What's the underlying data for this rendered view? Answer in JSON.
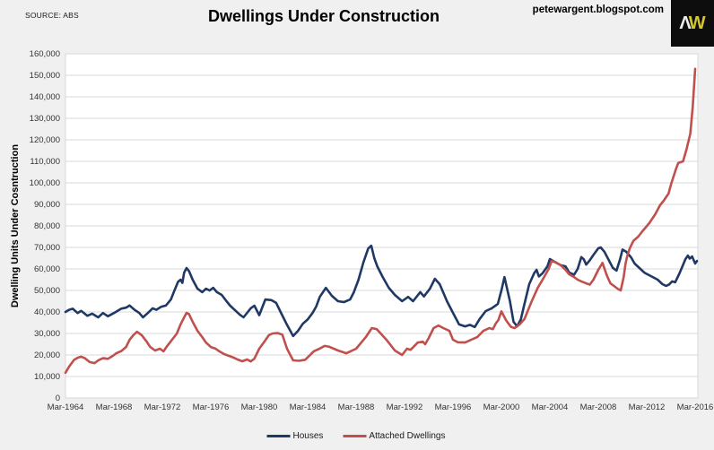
{
  "header": {
    "source_label": "SOURCE: ABS",
    "title": "Dwellings Under Construction",
    "site": "petewargent.blogspot.com",
    "logo_a": "Λ",
    "logo_w": "W"
  },
  "colors": {
    "houses": "#1F3864",
    "attached": "#C0504D",
    "gridline": "#d9d9d9",
    "plot_background": "#ffffff",
    "page_background": "#f0f0f0",
    "tick_text": "#333333"
  },
  "chart_data": {
    "type": "line",
    "title": "Dwellings Under Construction",
    "ylabel": "Dwelling Units Under Cosntruction",
    "xlabel": "",
    "ylim": [
      0,
      160000
    ],
    "ytick_step": 10000,
    "grid": "horizontal",
    "legend_position": "bottom-center",
    "xticks": [
      {
        "year": 1964,
        "label": "Mar-1964"
      },
      {
        "year": 1968,
        "label": "Mar-1968"
      },
      {
        "year": 1972,
        "label": "Mar-1972"
      },
      {
        "year": 1976,
        "label": "Mar-1976"
      },
      {
        "year": 1980,
        "label": "Mar-1980"
      },
      {
        "year": 1984,
        "label": "Mar-1984"
      },
      {
        "year": 1988,
        "label": "Mar-1988"
      },
      {
        "year": 1992,
        "label": "Mar-1992"
      },
      {
        "year": 1996,
        "label": "Mar-1996"
      },
      {
        "year": 2000,
        "label": "Mar-2000"
      },
      {
        "year": 2004,
        "label": "Mar-2004"
      },
      {
        "year": 2008,
        "label": "Mar-2008"
      },
      {
        "year": 2012,
        "label": "Mar-2012"
      },
      {
        "year": 2016,
        "label": "Mar-2016"
      }
    ],
    "series": [
      {
        "name": "Houses",
        "color": "#1F3864",
        "points": [
          [
            1964.0,
            40000
          ],
          [
            1964.3,
            41000
          ],
          [
            1964.6,
            41500
          ],
          [
            1965.0,
            39500
          ],
          [
            1965.3,
            40500
          ],
          [
            1965.8,
            38200
          ],
          [
            1966.2,
            39200
          ],
          [
            1966.7,
            37500
          ],
          [
            1967.1,
            39500
          ],
          [
            1967.5,
            38000
          ],
          [
            1968.0,
            39500
          ],
          [
            1968.6,
            41500
          ],
          [
            1969.0,
            42000
          ],
          [
            1969.3,
            43000
          ],
          [
            1969.7,
            41000
          ],
          [
            1970.1,
            39500
          ],
          [
            1970.4,
            37500
          ],
          [
            1970.8,
            39500
          ],
          [
            1971.2,
            41700
          ],
          [
            1971.5,
            41000
          ],
          [
            1971.9,
            42400
          ],
          [
            1972.3,
            43000
          ],
          [
            1972.7,
            45800
          ],
          [
            1973.0,
            50000
          ],
          [
            1973.3,
            54000
          ],
          [
            1973.5,
            55000
          ],
          [
            1973.65,
            53500
          ],
          [
            1973.8,
            58300
          ],
          [
            1974.0,
            60400
          ],
          [
            1974.2,
            59000
          ],
          [
            1974.5,
            55000
          ],
          [
            1974.9,
            50800
          ],
          [
            1975.3,
            49200
          ],
          [
            1975.6,
            50800
          ],
          [
            1975.9,
            50000
          ],
          [
            1976.2,
            51200
          ],
          [
            1976.5,
            49200
          ],
          [
            1976.9,
            47900
          ],
          [
            1977.3,
            45000
          ],
          [
            1977.6,
            42900
          ],
          [
            1978.0,
            40800
          ],
          [
            1978.4,
            38700
          ],
          [
            1978.7,
            37500
          ],
          [
            1979.0,
            39600
          ],
          [
            1979.3,
            41700
          ],
          [
            1979.6,
            42900
          ],
          [
            1980.0,
            38500
          ],
          [
            1980.5,
            45800
          ],
          [
            1981.0,
            45500
          ],
          [
            1981.4,
            44200
          ],
          [
            1981.8,
            39600
          ],
          [
            1982.3,
            34000
          ],
          [
            1982.8,
            28800
          ],
          [
            1983.2,
            31200
          ],
          [
            1983.6,
            34500
          ],
          [
            1984.0,
            36500
          ],
          [
            1984.4,
            39500
          ],
          [
            1984.7,
            42500
          ],
          [
            1985.0,
            47000
          ],
          [
            1985.5,
            51200
          ],
          [
            1986.0,
            47500
          ],
          [
            1986.5,
            45000
          ],
          [
            1987.0,
            44600
          ],
          [
            1987.5,
            45800
          ],
          [
            1987.8,
            49000
          ],
          [
            1988.2,
            55000
          ],
          [
            1988.6,
            63000
          ],
          [
            1989.0,
            69500
          ],
          [
            1989.25,
            70800
          ],
          [
            1989.5,
            65000
          ],
          [
            1989.75,
            61200
          ],
          [
            1990.2,
            56200
          ],
          [
            1990.7,
            51200
          ],
          [
            1991.2,
            47900
          ],
          [
            1991.8,
            45000
          ],
          [
            1992.3,
            47000
          ],
          [
            1992.7,
            45000
          ],
          [
            1993.3,
            49200
          ],
          [
            1993.6,
            47200
          ],
          [
            1994.1,
            50800
          ],
          [
            1994.5,
            55400
          ],
          [
            1994.9,
            52900
          ],
          [
            1995.5,
            45000
          ],
          [
            1996.0,
            39600
          ],
          [
            1996.5,
            34200
          ],
          [
            1997.0,
            33300
          ],
          [
            1997.4,
            34000
          ],
          [
            1997.8,
            33000
          ],
          [
            1998.2,
            36700
          ],
          [
            1998.7,
            40400
          ],
          [
            1999.2,
            41700
          ],
          [
            1999.7,
            43700
          ],
          [
            2000.0,
            50000
          ],
          [
            2000.25,
            56200
          ],
          [
            2000.7,
            45000
          ],
          [
            2001.0,
            35400
          ],
          [
            2001.3,
            33300
          ],
          [
            2001.6,
            36500
          ],
          [
            2001.9,
            43700
          ],
          [
            2002.3,
            52900
          ],
          [
            2002.7,
            58000
          ],
          [
            2002.9,
            59600
          ],
          [
            2003.1,
            56500
          ],
          [
            2003.4,
            58000
          ],
          [
            2003.8,
            61200
          ],
          [
            2004.0,
            64600
          ],
          [
            2004.4,
            63300
          ],
          [
            2004.9,
            61700
          ],
          [
            2005.3,
            61200
          ],
          [
            2005.6,
            58300
          ],
          [
            2006.0,
            57300
          ],
          [
            2006.3,
            60000
          ],
          [
            2006.6,
            65500
          ],
          [
            2006.8,
            64500
          ],
          [
            2007.0,
            62000
          ],
          [
            2007.3,
            64000
          ],
          [
            2007.6,
            66500
          ],
          [
            2008.0,
            69600
          ],
          [
            2008.2,
            70000
          ],
          [
            2008.5,
            68000
          ],
          [
            2008.9,
            63700
          ],
          [
            2009.2,
            60500
          ],
          [
            2009.5,
            59200
          ],
          [
            2009.8,
            64500
          ],
          [
            2010.0,
            69000
          ],
          [
            2010.3,
            68000
          ],
          [
            2010.7,
            65400
          ],
          [
            2011.0,
            62500
          ],
          [
            2011.4,
            60400
          ],
          [
            2011.8,
            58300
          ],
          [
            2012.2,
            57100
          ],
          [
            2012.5,
            56200
          ],
          [
            2012.9,
            55000
          ],
          [
            2013.3,
            52900
          ],
          [
            2013.6,
            52100
          ],
          [
            2013.85,
            52800
          ],
          [
            2014.1,
            54200
          ],
          [
            2014.35,
            53800
          ],
          [
            2014.7,
            57900
          ],
          [
            2014.95,
            61200
          ],
          [
            2015.2,
            64600
          ],
          [
            2015.4,
            66200
          ],
          [
            2015.55,
            64800
          ],
          [
            2015.75,
            65800
          ],
          [
            2016.0,
            62500
          ],
          [
            2016.15,
            63700
          ]
        ]
      },
      {
        "name": "Attached Dwellings",
        "color": "#C0504D",
        "points": [
          [
            1964.0,
            11700
          ],
          [
            1964.3,
            14600
          ],
          [
            1964.7,
            17700
          ],
          [
            1965.0,
            18700
          ],
          [
            1965.3,
            19200
          ],
          [
            1965.6,
            18500
          ],
          [
            1966.0,
            16700
          ],
          [
            1966.4,
            16200
          ],
          [
            1966.7,
            17500
          ],
          [
            1967.1,
            18500
          ],
          [
            1967.5,
            18200
          ],
          [
            1967.9,
            19600
          ],
          [
            1968.2,
            20800
          ],
          [
            1968.6,
            21800
          ],
          [
            1969.0,
            23700
          ],
          [
            1969.3,
            27100
          ],
          [
            1969.6,
            29200
          ],
          [
            1969.9,
            30800
          ],
          [
            1970.3,
            29200
          ],
          [
            1970.7,
            26200
          ],
          [
            1971.0,
            23700
          ],
          [
            1971.4,
            22100
          ],
          [
            1971.8,
            22900
          ],
          [
            1972.1,
            21700
          ],
          [
            1972.4,
            24200
          ],
          [
            1972.8,
            27100
          ],
          [
            1973.2,
            30000
          ],
          [
            1973.5,
            34200
          ],
          [
            1973.8,
            37500
          ],
          [
            1974.0,
            39600
          ],
          [
            1974.2,
            39000
          ],
          [
            1974.5,
            35400
          ],
          [
            1974.9,
            31200
          ],
          [
            1975.3,
            28300
          ],
          [
            1975.6,
            25800
          ],
          [
            1976.0,
            23700
          ],
          [
            1976.4,
            22900
          ],
          [
            1976.7,
            21700
          ],
          [
            1977.1,
            20400
          ],
          [
            1977.5,
            19600
          ],
          [
            1977.9,
            18700
          ],
          [
            1978.2,
            17900
          ],
          [
            1978.6,
            17100
          ],
          [
            1979.0,
            17900
          ],
          [
            1979.3,
            17000
          ],
          [
            1979.6,
            18300
          ],
          [
            1980.0,
            22900
          ],
          [
            1980.4,
            26000
          ],
          [
            1980.8,
            29200
          ],
          [
            1981.1,
            30000
          ],
          [
            1981.5,
            30200
          ],
          [
            1981.9,
            29500
          ],
          [
            1982.3,
            22900
          ],
          [
            1982.8,
            17500
          ],
          [
            1983.3,
            17300
          ],
          [
            1983.8,
            17800
          ],
          [
            1984.2,
            20000
          ],
          [
            1984.5,
            21700
          ],
          [
            1985.0,
            23000
          ],
          [
            1985.4,
            24200
          ],
          [
            1985.8,
            23800
          ],
          [
            1986.5,
            22100
          ],
          [
            1987.2,
            20800
          ],
          [
            1988.0,
            22900
          ],
          [
            1988.8,
            28300
          ],
          [
            1989.3,
            32500
          ],
          [
            1989.7,
            32000
          ],
          [
            1990.5,
            27100
          ],
          [
            1991.2,
            22100
          ],
          [
            1991.8,
            20000
          ],
          [
            1992.2,
            22900
          ],
          [
            1992.5,
            22400
          ],
          [
            1993.1,
            25800
          ],
          [
            1993.5,
            26200
          ],
          [
            1993.7,
            25000
          ],
          [
            1994.0,
            27900
          ],
          [
            1994.4,
            32500
          ],
          [
            1994.8,
            33700
          ],
          [
            1995.2,
            32500
          ],
          [
            1995.7,
            31200
          ],
          [
            1996.0,
            27100
          ],
          [
            1996.4,
            25900
          ],
          [
            1997.0,
            25800
          ],
          [
            1997.5,
            27100
          ],
          [
            1998.0,
            28300
          ],
          [
            1998.5,
            31200
          ],
          [
            1999.0,
            32500
          ],
          [
            1999.3,
            32000
          ],
          [
            1999.55,
            34800
          ],
          [
            1999.75,
            36200
          ],
          [
            2000.0,
            40300
          ],
          [
            2000.4,
            36000
          ],
          [
            2000.8,
            33000
          ],
          [
            2001.1,
            32500
          ],
          [
            2001.5,
            34200
          ],
          [
            2001.9,
            36700
          ],
          [
            2002.5,
            45000
          ],
          [
            2003.0,
            51200
          ],
          [
            2003.4,
            55000
          ],
          [
            2003.9,
            60000
          ],
          [
            2004.15,
            63700
          ],
          [
            2004.5,
            63000
          ],
          [
            2004.9,
            61700
          ],
          [
            2005.3,
            59600
          ],
          [
            2005.6,
            57500
          ],
          [
            2006.0,
            56200
          ],
          [
            2006.3,
            55000
          ],
          [
            2006.6,
            54200
          ],
          [
            2007.0,
            53300
          ],
          [
            2007.3,
            52700
          ],
          [
            2007.6,
            55000
          ],
          [
            2008.0,
            59600
          ],
          [
            2008.35,
            62800
          ],
          [
            2008.7,
            57000
          ],
          [
            2009.0,
            53300
          ],
          [
            2009.3,
            52100
          ],
          [
            2009.6,
            50800
          ],
          [
            2009.85,
            50000
          ],
          [
            2010.1,
            56200
          ],
          [
            2010.25,
            62500
          ],
          [
            2010.4,
            66200
          ],
          [
            2010.6,
            69600
          ],
          [
            2010.9,
            73100
          ],
          [
            2011.3,
            75000
          ],
          [
            2011.7,
            77900
          ],
          [
            2012.2,
            81200
          ],
          [
            2012.7,
            85400
          ],
          [
            2013.1,
            89600
          ],
          [
            2013.4,
            91700
          ],
          [
            2013.8,
            95000
          ],
          [
            2014.0,
            99200
          ],
          [
            2014.4,
            106200
          ],
          [
            2014.6,
            109200
          ],
          [
            2015.0,
            110000
          ],
          [
            2015.3,
            115800
          ],
          [
            2015.6,
            122900
          ],
          [
            2015.8,
            135400
          ],
          [
            2016.0,
            153000
          ]
        ]
      }
    ]
  },
  "legend": {
    "items": [
      "Houses",
      "Attached Dwellings"
    ]
  }
}
